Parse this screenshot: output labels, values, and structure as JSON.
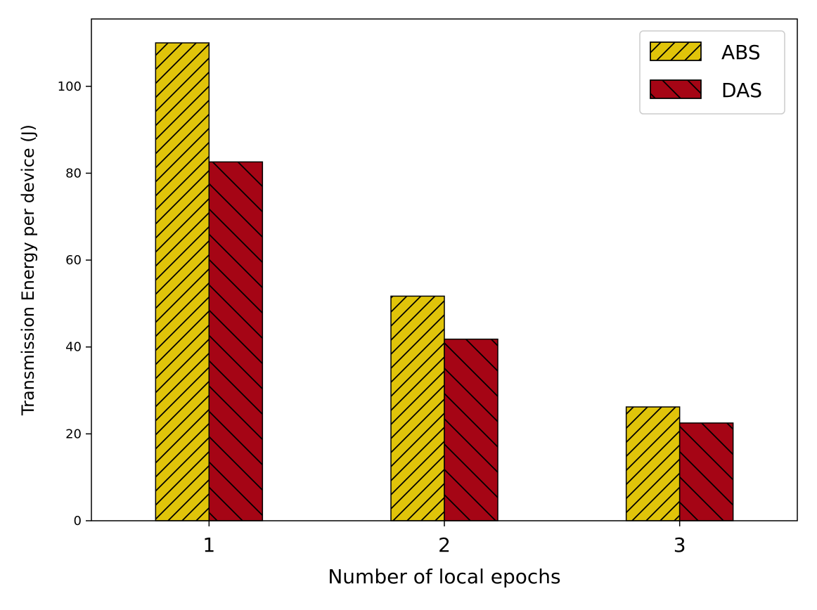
{
  "chart_data": {
    "type": "bar",
    "categories": [
      "1",
      "2",
      "3"
    ],
    "series": [
      {
        "name": "ABS",
        "values": [
          110,
          51.7,
          26.2
        ],
        "color": "#e0c40a",
        "hatch": "forward-diagonal"
      },
      {
        "name": "DAS",
        "values": [
          82.6,
          41.8,
          22.5
        ],
        "color": "#a50515",
        "hatch": "back-diagonal"
      }
    ],
    "xlabel": "Number of local epochs",
    "ylabel": "Transmission Energy per device (J)",
    "ylim": [
      0,
      115.5
    ],
    "yticks": [
      0,
      20,
      40,
      60,
      80,
      100
    ],
    "grid": false,
    "legend_position": "top-right"
  }
}
